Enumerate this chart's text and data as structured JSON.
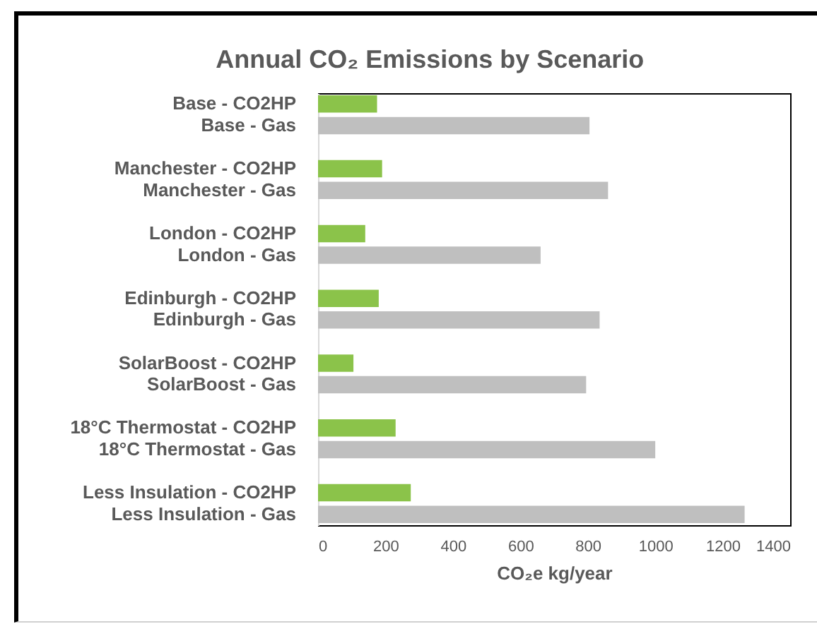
{
  "chart_data": {
    "type": "bar",
    "orientation": "horizontal",
    "title": "Annual CO₂ Emissions by Scenario",
    "xlabel": "CO₂e kg/year",
    "categories": [
      "Base - CO2HP",
      "Base - Gas",
      null,
      "Manchester - CO2HP",
      "Manchester - Gas",
      null,
      "London - CO2HP",
      "London - Gas",
      null,
      "Edinburgh - CO2HP",
      "Edinburgh - Gas",
      null,
      "SolarBoost - CO2HP",
      "SolarBoost - Gas",
      null,
      "18°C Thermostat - CO2HP",
      "18°C Thermostat - Gas",
      null,
      "Less Insulation - CO2HP",
      "Less Insulation - Gas"
    ],
    "series": [
      {
        "color": "#8bc34a",
        "values": [
          175,
          null,
          null,
          190,
          null,
          null,
          140,
          null,
          null,
          180,
          null,
          null,
          105,
          null,
          null,
          230,
          null,
          null,
          275,
          null
        ]
      },
      {
        "color": "#bfbfbf",
        "values": [
          null,
          805,
          null,
          null,
          860,
          null,
          null,
          660,
          null,
          null,
          835,
          null,
          null,
          795,
          null,
          null,
          1000,
          null,
          null,
          1265
        ]
      }
    ],
    "xlim": [
      0,
      1400
    ],
    "xticks": [
      0,
      200,
      400,
      600,
      800,
      1000,
      1200,
      1400
    ],
    "grid": false,
    "legend": false
  }
}
